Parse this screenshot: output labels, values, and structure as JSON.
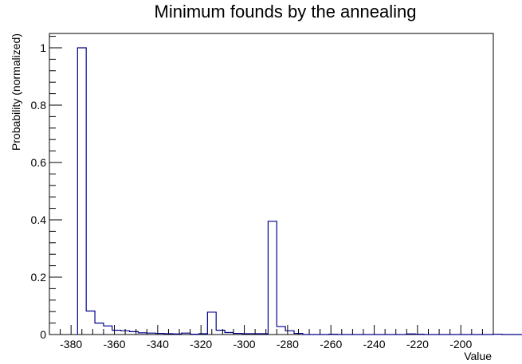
{
  "chart_data": {
    "type": "bar",
    "title": "Minimum founds by the annealing",
    "xlabel": "Value",
    "ylabel": "Probability (normalized)",
    "xlim": [
      -390,
      -185
    ],
    "ylim": [
      0,
      1.05
    ],
    "x_ticks": [
      -380,
      -360,
      -340,
      -320,
      -300,
      -280,
      -260,
      -240,
      -220,
      -200
    ],
    "y_ticks": [
      0,
      0.2,
      0.4,
      0.6,
      0.8,
      1
    ],
    "y_tick_labels": [
      "0",
      "0.2",
      "0.4",
      "0.6",
      "0.8",
      "1"
    ],
    "bin_width": 4,
    "bin_start": -377,
    "values": [
      1.0,
      0.082,
      0.04,
      0.03,
      0.015,
      0.013,
      0.01,
      0.006,
      0.005,
      0.004,
      0.003,
      0.002,
      0.005,
      0.001,
      0.003,
      0.078,
      0.015,
      0.007,
      0.004,
      0.003,
      0.003,
      0.003,
      0.395,
      0.028,
      0.013,
      0.004,
      0,
      0,
      0,
      0.001,
      0,
      0,
      0,
      0,
      0,
      0,
      0,
      0,
      0.002,
      0.001,
      0,
      0,
      0,
      0,
      0,
      0,
      0,
      0,
      0.001,
      0,
      0,
      0
    ],
    "series": [
      {
        "name": "",
        "color": "#00008b"
      }
    ],
    "grid": false,
    "legend": "none"
  }
}
